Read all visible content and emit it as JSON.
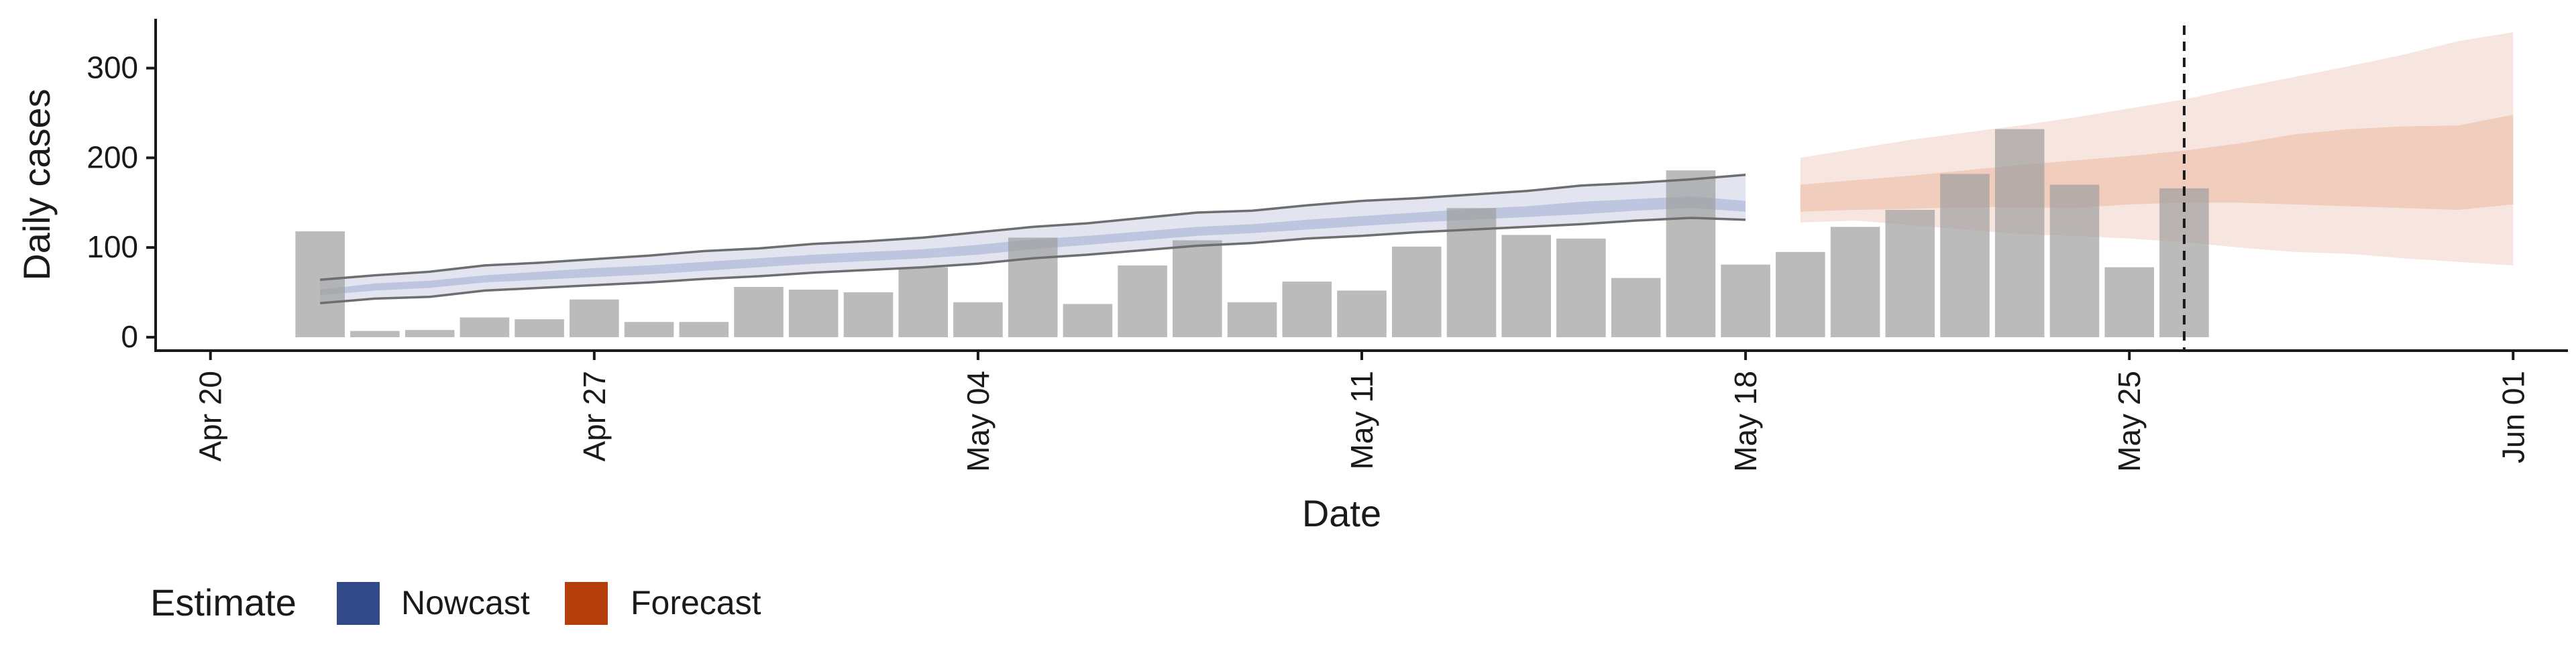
{
  "chart_data": {
    "type": "bar",
    "xlabel": "Date",
    "ylabel": "Daily cases",
    "ylim": [
      -15,
      355
    ],
    "yticks": [
      0,
      100,
      200,
      300
    ],
    "x_ticks": [
      {
        "date": "2020-04-20",
        "label": "Apr 20"
      },
      {
        "date": "2020-04-27",
        "label": "Apr 27"
      },
      {
        "date": "2020-05-04",
        "label": "May 04"
      },
      {
        "date": "2020-05-11",
        "label": "May 11"
      },
      {
        "date": "2020-05-18",
        "label": "May 18"
      },
      {
        "date": "2020-05-25",
        "label": "May 25"
      },
      {
        "date": "2020-06-01",
        "label": "Jun 01"
      }
    ],
    "xlim": [
      "2020-04-19",
      "2020-06-02"
    ],
    "grid": false,
    "vline": {
      "date": "2020-05-26",
      "style": "dashed"
    },
    "observed_cases": {
      "dates": [
        "2020-04-22",
        "2020-04-23",
        "2020-04-24",
        "2020-04-25",
        "2020-04-26",
        "2020-04-27",
        "2020-04-28",
        "2020-04-29",
        "2020-04-30",
        "2020-05-01",
        "2020-05-02",
        "2020-05-03",
        "2020-05-04",
        "2020-05-05",
        "2020-05-06",
        "2020-05-07",
        "2020-05-08",
        "2020-05-09",
        "2020-05-10",
        "2020-05-11",
        "2020-05-12",
        "2020-05-13",
        "2020-05-14",
        "2020-05-15",
        "2020-05-16",
        "2020-05-17",
        "2020-05-18",
        "2020-05-19",
        "2020-05-20",
        "2020-05-21",
        "2020-05-22",
        "2020-05-23",
        "2020-05-24",
        "2020-05-25",
        "2020-05-26"
      ],
      "values": [
        118,
        7,
        8,
        22,
        20,
        42,
        17,
        17,
        56,
        53,
        50,
        78,
        39,
        111,
        37,
        80,
        108,
        39,
        62,
        52,
        101,
        144,
        114,
        110,
        66,
        186,
        81,
        95,
        123,
        142,
        182,
        232,
        170,
        78,
        166
      ]
    },
    "nowcast": {
      "name": "Nowcast",
      "dates": [
        "2020-04-22",
        "2020-04-23",
        "2020-04-24",
        "2020-04-25",
        "2020-04-26",
        "2020-04-27",
        "2020-04-28",
        "2020-04-29",
        "2020-04-30",
        "2020-05-01",
        "2020-05-02",
        "2020-05-03",
        "2020-05-04",
        "2020-05-05",
        "2020-05-06",
        "2020-05-07",
        "2020-05-08",
        "2020-05-09",
        "2020-05-10",
        "2020-05-11",
        "2020-05-12",
        "2020-05-13",
        "2020-05-14",
        "2020-05-15",
        "2020-05-16",
        "2020-05-17",
        "2020-05-18"
      ],
      "lower90": [
        38,
        43,
        45,
        52,
        55,
        58,
        61,
        65,
        68,
        72,
        75,
        78,
        82,
        88,
        92,
        97,
        102,
        105,
        110,
        113,
        117,
        120,
        123,
        126,
        130,
        133,
        131
      ],
      "lower50": [
        47,
        52,
        55,
        61,
        64,
        67,
        70,
        74,
        78,
        82,
        85,
        88,
        92,
        98,
        103,
        108,
        113,
        116,
        120,
        124,
        128,
        131,
        134,
        137,
        141,
        144,
        140
      ],
      "upper50": [
        53,
        60,
        63,
        69,
        73,
        77,
        80,
        84,
        88,
        92,
        95,
        98,
        103,
        109,
        113,
        118,
        123,
        126,
        131,
        135,
        139,
        143,
        146,
        151,
        154,
        157,
        152
      ],
      "upper90": [
        64,
        69,
        73,
        80,
        83,
        87,
        91,
        96,
        99,
        104,
        107,
        111,
        117,
        123,
        127,
        133,
        139,
        141,
        147,
        152,
        155,
        159,
        163,
        169,
        172,
        176,
        181
      ]
    },
    "forecast": {
      "name": "Forecast",
      "dates": [
        "2020-05-19",
        "2020-05-20",
        "2020-05-21",
        "2020-05-22",
        "2020-05-23",
        "2020-05-24",
        "2020-05-25",
        "2020-05-26",
        "2020-05-27",
        "2020-05-28",
        "2020-05-29",
        "2020-05-30",
        "2020-05-31",
        "2020-06-01"
      ],
      "lower90": [
        128,
        130,
        125,
        120,
        115,
        113,
        110,
        106,
        100,
        95,
        93,
        88,
        84,
        80
      ],
      "lower50": [
        140,
        142,
        143,
        145,
        145,
        144,
        148,
        150,
        150,
        148,
        146,
        144,
        142,
        148
      ],
      "upper50": [
        170,
        175,
        180,
        186,
        192,
        197,
        202,
        208,
        216,
        226,
        232,
        235,
        236,
        248
      ],
      "upper90": [
        200,
        210,
        220,
        228,
        236,
        245,
        255,
        265,
        278,
        290,
        302,
        315,
        330,
        340
      ]
    },
    "legend": {
      "title": "Estimate",
      "position": "bottom-left",
      "items": [
        {
          "label": "Nowcast",
          "color": "#32498a"
        },
        {
          "label": "Forecast",
          "color": "#b53e0d"
        }
      ]
    },
    "colors": {
      "bar": "#bdbdbd",
      "nowcast_band_outer": "#dfe2ee",
      "nowcast_band_inner": "#b9c2dc",
      "forecast_band_outer": "#f6e1d9",
      "forecast_band_inner": "#efcab9",
      "nowcast_line": "#6e6e6e",
      "axis": "#1a1a1a"
    }
  }
}
